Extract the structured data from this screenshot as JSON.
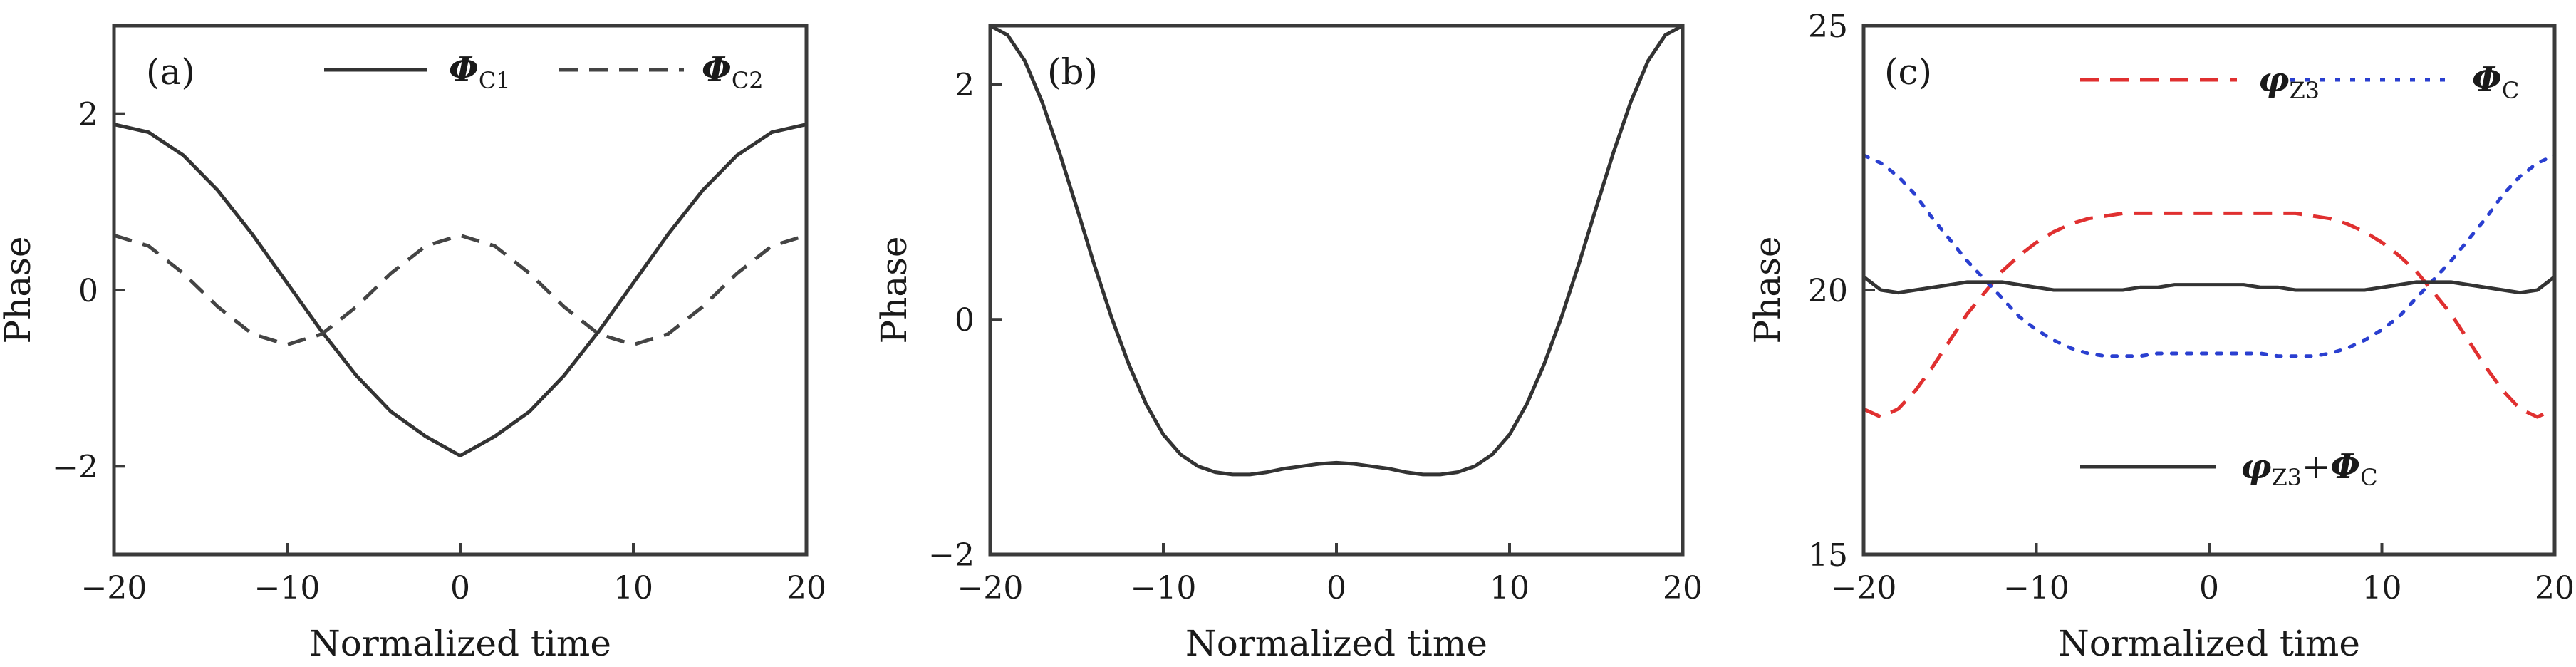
{
  "chart_data": [
    {
      "type": "line",
      "panel_label": "(a)",
      "xlabel": "Normalized time",
      "ylabel": "Phase",
      "xlim": [
        -20,
        20
      ],
      "ylim": [
        -3,
        3
      ],
      "xticks": [
        -20,
        -10,
        0,
        10,
        20
      ],
      "xtick_labels": [
        "−20",
        "−10",
        "0",
        "10",
        "20"
      ],
      "yticks": [
        -2,
        0,
        2
      ],
      "ytick_labels": [
        "−2",
        "0",
        "2"
      ],
      "legend_position": "top",
      "series": [
        {
          "name": "ΦC1",
          "legend_main": "Φ",
          "legend_sub": "C1",
          "color": "#333333",
          "style": "solid",
          "x": [
            -20,
            -18,
            -16,
            -14,
            -12,
            -10,
            -8,
            -6,
            -4,
            -2,
            0,
            2,
            4,
            6,
            8,
            10,
            12,
            14,
            16,
            18,
            20
          ],
          "y": [
            1.88,
            1.79,
            1.53,
            1.13,
            0.63,
            0.08,
            -0.47,
            -0.97,
            -1.38,
            -1.66,
            -1.88,
            -1.66,
            -1.38,
            -0.97,
            -0.47,
            0.08,
            0.63,
            1.13,
            1.53,
            1.79,
            1.88
          ]
        },
        {
          "name": "ΦC2",
          "legend_main": "Φ",
          "legend_sub": "C2",
          "color": "#444444",
          "style": "dashed",
          "x": [
            -20,
            -18,
            -16,
            -14,
            -12,
            -10,
            -8,
            -6,
            -4,
            -2,
            0,
            2,
            4,
            6,
            8,
            10,
            12,
            14,
            16,
            18,
            20
          ],
          "y": [
            0.62,
            0.5,
            0.19,
            -0.19,
            -0.5,
            -0.62,
            -0.5,
            -0.19,
            0.19,
            0.5,
            0.62,
            0.5,
            0.19,
            -0.19,
            -0.5,
            -0.62,
            -0.5,
            -0.19,
            0.19,
            0.5,
            0.62
          ]
        }
      ]
    },
    {
      "type": "line",
      "panel_label": "(b)",
      "xlabel": "Normalized time",
      "ylabel": "Phase",
      "xlim": [
        -20,
        20
      ],
      "ylim": [
        -2,
        2.5
      ],
      "xticks": [
        -20,
        -10,
        0,
        10,
        20
      ],
      "xtick_labels": [
        "−20",
        "−10",
        "0",
        "10",
        "20"
      ],
      "yticks": [
        -2,
        0,
        2
      ],
      "ytick_labels": [
        "−2",
        "0",
        "2"
      ],
      "series": [
        {
          "color": "#333333",
          "style": "solid",
          "x": [
            -20,
            -19,
            -18,
            -17,
            -16,
            -15,
            -14,
            -13,
            -12,
            -11,
            -10,
            -9,
            -8,
            -7,
            -6,
            -5,
            -4,
            -3,
            -2,
            -1,
            0,
            1,
            2,
            3,
            4,
            5,
            6,
            7,
            8,
            9,
            10,
            11,
            12,
            13,
            14,
            15,
            16,
            17,
            18,
            19,
            20
          ],
          "y": [
            2.5,
            2.42,
            2.2,
            1.85,
            1.42,
            0.95,
            0.47,
            0.02,
            -0.38,
            -0.72,
            -0.98,
            -1.15,
            -1.25,
            -1.3,
            -1.32,
            -1.32,
            -1.3,
            -1.27,
            -1.25,
            -1.23,
            -1.22,
            -1.23,
            -1.25,
            -1.27,
            -1.3,
            -1.32,
            -1.32,
            -1.3,
            -1.25,
            -1.15,
            -0.98,
            -0.72,
            -0.38,
            0.02,
            0.47,
            0.95,
            1.42,
            1.85,
            2.2,
            2.42,
            2.5
          ]
        }
      ]
    },
    {
      "type": "line",
      "panel_label": "(c)",
      "xlabel": "Normalized time",
      "ylabel": "Phase",
      "xlim": [
        -20,
        20
      ],
      "ylim": [
        15,
        25
      ],
      "xticks": [
        -20,
        -10,
        0,
        10,
        20
      ],
      "xtick_labels": [
        "−20",
        "−10",
        "0",
        "10",
        "20"
      ],
      "yticks": [
        15,
        20,
        25
      ],
      "ytick_labels": [
        "15",
        "20",
        "25"
      ],
      "series": [
        {
          "name": "φZ3",
          "legend_main": "φ",
          "legend_sub": "Z3",
          "color": "#e03030",
          "style": "dashed",
          "x": [
            -20,
            -19,
            -18,
            -17,
            -16,
            -15,
            -14,
            -13,
            -12,
            -11,
            -10,
            -9,
            -8,
            -7,
            -6,
            -5,
            -4,
            -3,
            -2,
            -1,
            0,
            1,
            2,
            3,
            4,
            5,
            6,
            7,
            8,
            9,
            10,
            11,
            12,
            13,
            14,
            15,
            16,
            17,
            18,
            19,
            20
          ],
          "y": [
            17.75,
            17.6,
            17.75,
            18.1,
            18.55,
            19.05,
            19.55,
            19.95,
            20.35,
            20.65,
            20.9,
            21.1,
            21.25,
            21.35,
            21.4,
            21.45,
            21.45,
            21.45,
            21.45,
            21.45,
            21.45,
            21.45,
            21.45,
            21.45,
            21.45,
            21.45,
            21.4,
            21.35,
            21.25,
            21.1,
            20.9,
            20.65,
            20.35,
            19.95,
            19.55,
            19.05,
            18.55,
            18.1,
            17.75,
            17.6,
            17.75
          ]
        },
        {
          "name": "ΦC",
          "legend_main": "Φ",
          "legend_sub": "C",
          "color": "#2a3fd0",
          "style": "dotted",
          "x": [
            -20,
            -19,
            -18,
            -17,
            -16,
            -15,
            -14,
            -13,
            -12,
            -11,
            -10,
            -9,
            -8,
            -7,
            -6,
            -5,
            -4,
            -3,
            -2,
            -1,
            0,
            1,
            2,
            3,
            4,
            5,
            6,
            7,
            8,
            9,
            10,
            11,
            12,
            13,
            14,
            15,
            16,
            17,
            18,
            19,
            20
          ],
          "y": [
            22.55,
            22.4,
            22.15,
            21.8,
            21.35,
            20.95,
            20.55,
            20.2,
            19.85,
            19.5,
            19.25,
            19.05,
            18.9,
            18.8,
            18.75,
            18.75,
            18.75,
            18.8,
            18.8,
            18.8,
            18.8,
            18.8,
            18.8,
            18.8,
            18.75,
            18.75,
            18.75,
            18.8,
            18.9,
            19.05,
            19.25,
            19.5,
            19.85,
            20.2,
            20.55,
            20.95,
            21.35,
            21.8,
            22.15,
            22.4,
            22.55
          ]
        },
        {
          "name": "φZ3+ΦC",
          "legend_main": "φ",
          "legend_sub": "Z3",
          "legend_plus": "+",
          "legend_main2": "Φ",
          "legend_sub2": "C",
          "color": "#333333",
          "style": "solid",
          "x": [
            -20,
            -19,
            -18,
            -17,
            -16,
            -15,
            -14,
            -13,
            -12,
            -11,
            -10,
            -9,
            -8,
            -7,
            -6,
            -5,
            -4,
            -3,
            -2,
            -1,
            0,
            1,
            2,
            3,
            4,
            5,
            6,
            7,
            8,
            9,
            10,
            11,
            12,
            13,
            14,
            15,
            16,
            17,
            18,
            19,
            20
          ],
          "y": [
            20.25,
            20.0,
            19.95,
            20.0,
            20.05,
            20.1,
            20.15,
            20.15,
            20.15,
            20.1,
            20.05,
            20.0,
            20.0,
            20.0,
            20.0,
            20.0,
            20.05,
            20.05,
            20.1,
            20.1,
            20.1,
            20.1,
            20.1,
            20.05,
            20.05,
            20.0,
            20.0,
            20.0,
            20.0,
            20.0,
            20.05,
            20.1,
            20.15,
            20.15,
            20.15,
            20.1,
            20.05,
            20.0,
            19.95,
            20.0,
            20.25
          ]
        }
      ]
    }
  ]
}
